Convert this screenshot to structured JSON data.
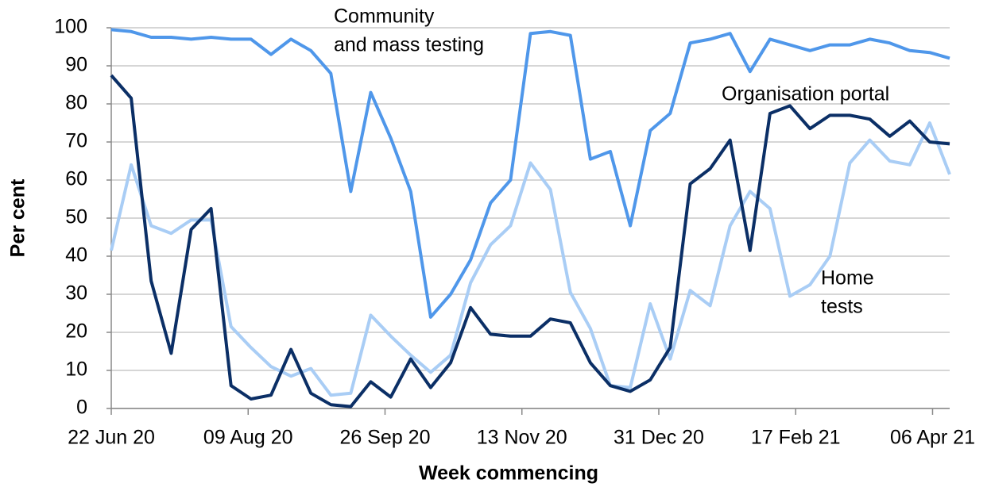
{
  "chart_data": {
    "type": "line",
    "y_label": "Per cent",
    "x_label": "Week commencing",
    "x": [
      "2020-06-22",
      "2020-06-29",
      "2020-07-06",
      "2020-07-13",
      "2020-07-20",
      "2020-07-27",
      "2020-08-03",
      "2020-08-10",
      "2020-08-17",
      "2020-08-24",
      "2020-08-31",
      "2020-09-07",
      "2020-09-14",
      "2020-09-21",
      "2020-09-28",
      "2020-10-05",
      "2020-10-12",
      "2020-10-19",
      "2020-10-26",
      "2020-11-02",
      "2020-11-09",
      "2020-11-16",
      "2020-11-23",
      "2020-11-30",
      "2020-12-07",
      "2020-12-14",
      "2020-12-21",
      "2020-12-28",
      "2021-01-04",
      "2021-01-11",
      "2021-01-18",
      "2021-01-25",
      "2021-02-01",
      "2021-02-08",
      "2021-02-15",
      "2021-02-22",
      "2021-03-01",
      "2021-03-08",
      "2021-03-15",
      "2021-03-22",
      "2021-03-29",
      "2021-04-05",
      "2021-04-12"
    ],
    "xlim": [
      "2020-06-22",
      "2021-04-12"
    ],
    "xticks": [
      {
        "value": "2020-06-22",
        "label": "22 Jun 20"
      },
      {
        "value": "2020-08-09",
        "label": "09 Aug 20"
      },
      {
        "value": "2020-09-26",
        "label": "26 Sep 20"
      },
      {
        "value": "2020-11-13",
        "label": "13 Nov 20"
      },
      {
        "value": "2020-12-31",
        "label": "31 Dec 20"
      },
      {
        "value": "2021-02-17",
        "label": "17 Feb 21"
      },
      {
        "value": "2021-04-06",
        "label": "06 Apr 21"
      }
    ],
    "ylim": [
      0,
      100
    ],
    "yticks": [
      0,
      10,
      20,
      30,
      40,
      50,
      60,
      70,
      80,
      90,
      100
    ],
    "grid": true,
    "series": [
      {
        "name": "Community and mass testing",
        "color": "#4f97ea",
        "values": [
          99.5,
          99,
          97.5,
          97.5,
          97,
          97.5,
          97,
          97,
          93,
          97,
          94,
          88,
          57,
          83,
          71,
          57,
          24,
          30,
          39,
          54,
          60,
          98.5,
          99,
          98,
          65.5,
          67.5,
          48,
          73,
          77.5,
          96,
          97,
          98.5,
          88.5,
          97,
          95.5,
          94,
          95.5,
          95.5,
          97,
          96,
          94,
          93.5,
          92
        ]
      },
      {
        "name": "Organisation portal",
        "color": "#0b2f66",
        "values": [
          87.5,
          81.5,
          33.5,
          14.5,
          47,
          52.5,
          6,
          2.5,
          3.5,
          15.5,
          4,
          1,
          0.5,
          7,
          3,
          13,
          5.5,
          12,
          26.5,
          19.5,
          19,
          19,
          23.5,
          22.5,
          12,
          6,
          4.5,
          7.5,
          16,
          59,
          63,
          70.5,
          41.5,
          77.5,
          79.5,
          73.5,
          77,
          77,
          76,
          71.5,
          75.5,
          70,
          69.5
        ]
      },
      {
        "name": "Home tests",
        "color": "#a9cdf5",
        "values": [
          41.5,
          64,
          48,
          46,
          49.5,
          49.5,
          21.5,
          16,
          11,
          8.5,
          10.5,
          3.5,
          4,
          24.5,
          19,
          14,
          9.5,
          14,
          33,
          43,
          48,
          64.5,
          57.5,
          30.5,
          21,
          6,
          5.5,
          27.5,
          13,
          31,
          27,
          48,
          57,
          52.5,
          29.5,
          32.5,
          40,
          64.5,
          70.5,
          65,
          64,
          75,
          61.5
        ]
      }
    ],
    "annotations": [
      {
        "lines": [
          "Community",
          "and mass testing"
        ]
      },
      {
        "lines": [
          "Organisation portal"
        ]
      },
      {
        "lines": [
          "Home",
          "tests"
        ]
      }
    ]
  }
}
